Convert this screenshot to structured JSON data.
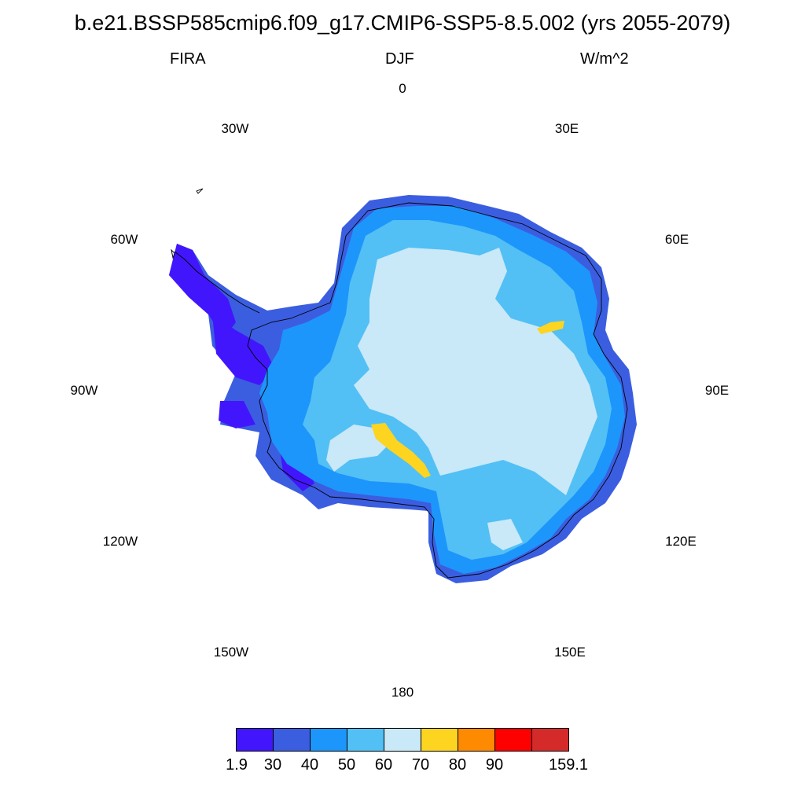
{
  "title": "b.e21.BSSP585cmip6.f09_g17.CMIP6-SSP5-8.5.002 (yrs 2055-2079)",
  "left_label": "FIRA",
  "center_label": "DJF",
  "right_label": "W/m^2",
  "longitude_labels": {
    "0": "0",
    "30E": "30E",
    "60E": "60E",
    "90E": "90E",
    "120E": "120E",
    "150E": "150E",
    "180": "180",
    "150W": "150W",
    "120W": "120W",
    "90W": "90W",
    "60W": "60W",
    "30W": "30W"
  },
  "colorbar": {
    "colors": [
      "#4216fc",
      "#3b5ee0",
      "#1d96fb",
      "#52c0f5",
      "#c9e8f8",
      "#fdd41f",
      "#fd8a00",
      "#fd0000",
      "#d52a2a"
    ],
    "labels": [
      "1.9",
      "30",
      "40",
      "50",
      "60",
      "70",
      "80",
      "90",
      "159.1"
    ]
  }
}
